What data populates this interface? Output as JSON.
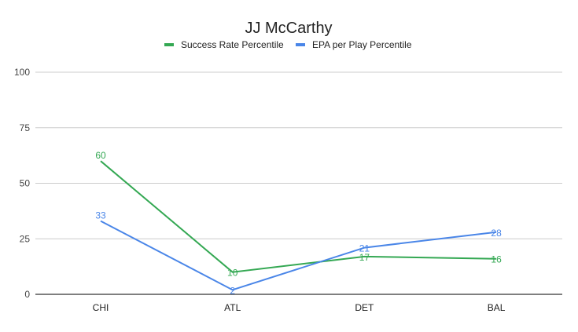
{
  "chart_data": {
    "type": "line",
    "title": "JJ McCarthy",
    "xlabel": "",
    "ylabel": "",
    "categories": [
      "CHI",
      "ATL",
      "DET",
      "BAL"
    ],
    "ylim": [
      0,
      100
    ],
    "yticks": [
      0,
      25,
      50,
      75,
      100
    ],
    "grid": true,
    "legend_position": "top",
    "series": [
      {
        "name": "Success Rate Percentile",
        "color": "#34a853",
        "values": [
          60,
          10,
          17,
          16
        ]
      },
      {
        "name": "EPA per Play Percentile",
        "color": "#4a86e8",
        "values": [
          33,
          2,
          21,
          28
        ]
      }
    ]
  }
}
